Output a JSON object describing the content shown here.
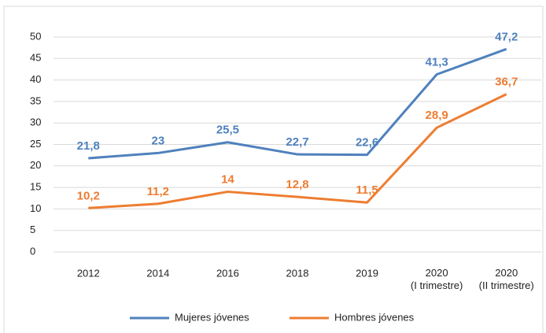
{
  "chart_data": {
    "type": "line",
    "categories": [
      "2012",
      "2014",
      "2016",
      "2018",
      "2019",
      "2020\n(I trimestre)",
      "2020\n(II trimestre)"
    ],
    "series": [
      {
        "name": "Mujeres jóvenes",
        "color": "#4f81bd",
        "values": [
          21.8,
          23,
          25.5,
          22.7,
          22.6,
          41.3,
          47.2
        ],
        "value_labels": [
          "21,8",
          "23",
          "25,5",
          "22,7",
          "22,6",
          "41,3",
          "47,2"
        ]
      },
      {
        "name": "Hombres jóvenes",
        "color": "#ed7d31",
        "values": [
          10.2,
          11.2,
          14,
          12.8,
          11.5,
          28.9,
          36.7
        ],
        "value_labels": [
          "10,2",
          "11,2",
          "14",
          "12,8",
          "11,5",
          "28,9",
          "36,7"
        ]
      }
    ],
    "ylim": [
      0,
      50
    ],
    "yticks": [
      0,
      5,
      10,
      15,
      20,
      25,
      30,
      35,
      40,
      45,
      50
    ],
    "grid": true,
    "legend": "bottom"
  }
}
